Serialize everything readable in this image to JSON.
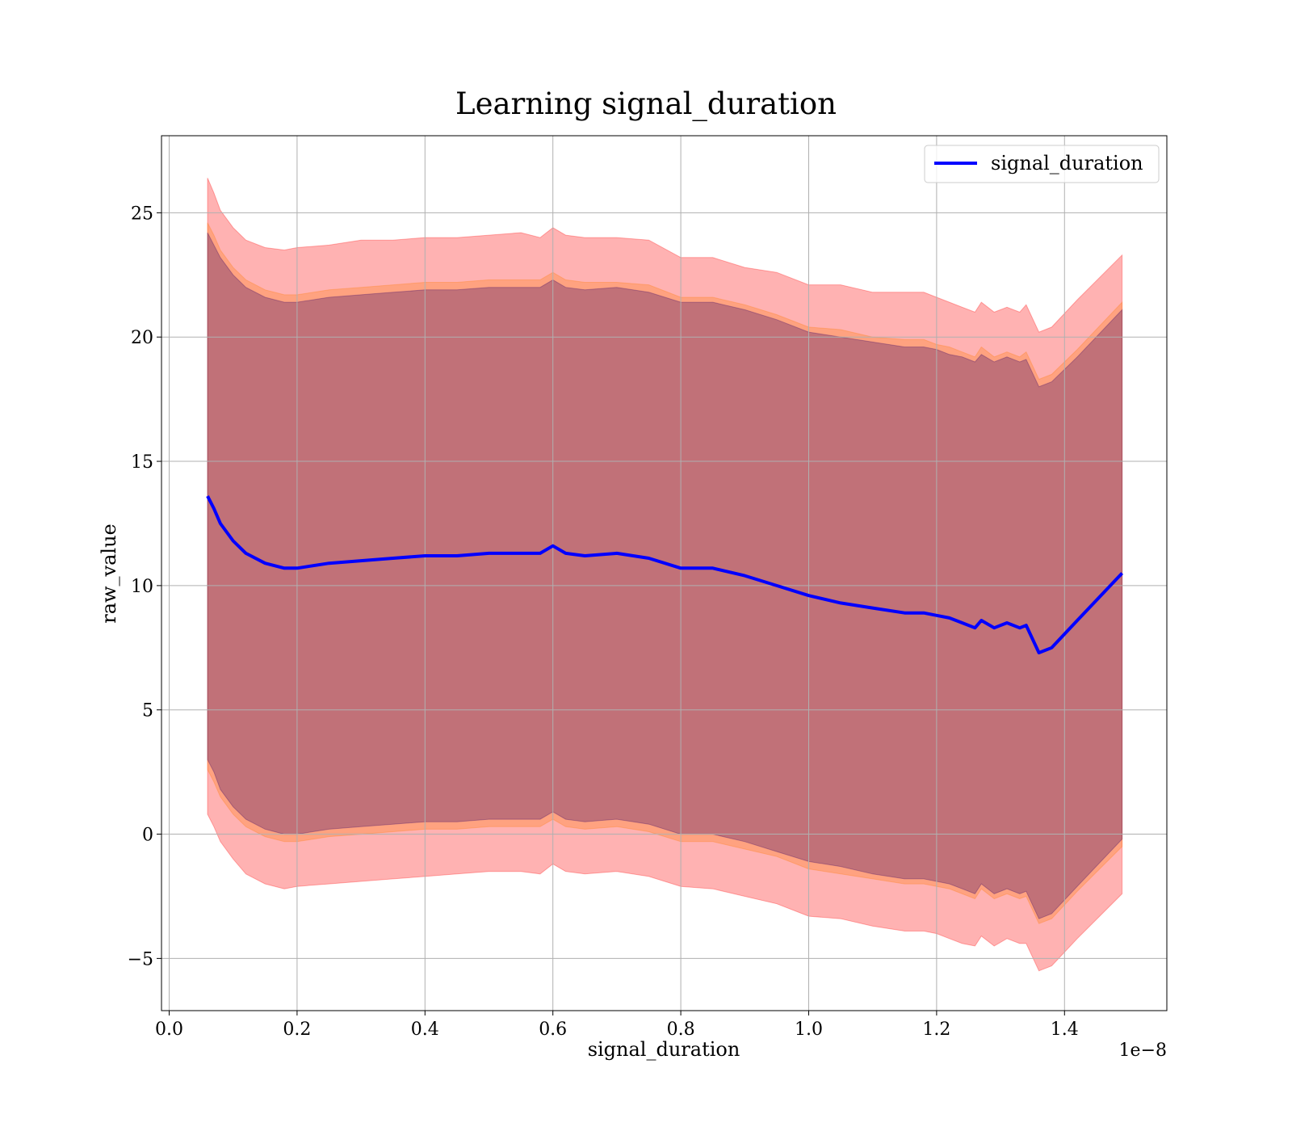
{
  "chart_data": {
    "type": "area",
    "title": "Learning signal_duration",
    "xlabel": "signal_duration",
    "ylabel": "raw_value",
    "x_offset_label": "1e−8",
    "xlim": [
      -0.012,
      1.56
    ],
    "ylim": [
      -7.1,
      28.1
    ],
    "xticks": [
      0.0,
      0.2,
      0.4,
      0.6,
      0.8,
      1.0,
      1.2,
      1.4
    ],
    "xtick_labels": [
      "0.0",
      "0.2",
      "0.4",
      "0.6",
      "0.8",
      "1.0",
      "1.2",
      "1.4"
    ],
    "yticks": [
      -5,
      0,
      5,
      10,
      15,
      20,
      25
    ],
    "ytick_labels": [
      "−5",
      "0",
      "5",
      "10",
      "15",
      "20",
      "25"
    ],
    "grid": true,
    "legend_position": "top-right",
    "x": [
      0.06,
      0.07,
      0.08,
      0.1,
      0.12,
      0.15,
      0.18,
      0.2,
      0.25,
      0.3,
      0.35,
      0.4,
      0.45,
      0.5,
      0.55,
      0.58,
      0.6,
      0.62,
      0.65,
      0.7,
      0.75,
      0.8,
      0.85,
      0.9,
      0.95,
      1.0,
      1.05,
      1.1,
      1.15,
      1.18,
      1.2,
      1.22,
      1.24,
      1.26,
      1.27,
      1.29,
      1.31,
      1.33,
      1.34,
      1.36,
      1.38,
      1.42,
      1.49
    ],
    "series": [
      {
        "name": "signal_duration",
        "color": "#0000ff",
        "values": [
          13.6,
          13.1,
          12.5,
          11.8,
          11.3,
          10.9,
          10.7,
          10.7,
          10.9,
          11.0,
          11.1,
          11.2,
          11.2,
          11.3,
          11.3,
          11.3,
          11.6,
          11.3,
          11.2,
          11.3,
          11.1,
          10.7,
          10.7,
          10.4,
          10.0,
          9.6,
          9.3,
          9.1,
          8.9,
          8.9,
          8.8,
          8.7,
          8.5,
          8.3,
          8.6,
          8.3,
          8.5,
          8.3,
          8.4,
          7.3,
          7.5,
          8.6,
          10.5
        ]
      }
    ],
    "bands": [
      {
        "color": "#ff0000",
        "opacity": 0.3,
        "upper": [
          26.4,
          25.8,
          25.1,
          24.4,
          23.9,
          23.6,
          23.5,
          23.6,
          23.7,
          23.9,
          23.9,
          24.0,
          24.0,
          24.1,
          24.2,
          24.0,
          24.4,
          24.1,
          24.0,
          24.0,
          23.9,
          23.2,
          23.2,
          22.8,
          22.6,
          22.1,
          22.1,
          21.8,
          21.8,
          21.8,
          21.6,
          21.4,
          21.2,
          21.0,
          21.4,
          21.0,
          21.2,
          21.0,
          21.3,
          20.2,
          20.4,
          21.5,
          23.3
        ],
        "lower": [
          0.8,
          0.3,
          -0.3,
          -1.0,
          -1.6,
          -2.0,
          -2.2,
          -2.1,
          -2.0,
          -1.9,
          -1.8,
          -1.7,
          -1.6,
          -1.5,
          -1.5,
          -1.6,
          -1.2,
          -1.5,
          -1.6,
          -1.5,
          -1.7,
          -2.1,
          -2.2,
          -2.5,
          -2.8,
          -3.3,
          -3.4,
          -3.7,
          -3.9,
          -3.9,
          -4.0,
          -4.2,
          -4.4,
          -4.5,
          -4.1,
          -4.5,
          -4.2,
          -4.4,
          -4.4,
          -5.5,
          -5.3,
          -4.2,
          -2.4
        ]
      },
      {
        "color": "#ff7f0e",
        "opacity": 0.3,
        "upper": [
          24.6,
          24.1,
          23.5,
          22.8,
          22.3,
          21.9,
          21.7,
          21.7,
          21.9,
          22.0,
          22.1,
          22.2,
          22.2,
          22.3,
          22.3,
          22.3,
          22.6,
          22.3,
          22.2,
          22.2,
          22.1,
          21.6,
          21.6,
          21.3,
          20.9,
          20.4,
          20.3,
          20.0,
          19.9,
          19.9,
          19.7,
          19.6,
          19.4,
          19.2,
          19.6,
          19.2,
          19.4,
          19.2,
          19.4,
          18.3,
          18.5,
          19.5,
          21.4
        ],
        "lower": [
          2.6,
          2.1,
          1.5,
          0.8,
          0.3,
          -0.1,
          -0.3,
          -0.3,
          -0.1,
          0.0,
          0.1,
          0.2,
          0.2,
          0.3,
          0.3,
          0.3,
          0.6,
          0.3,
          0.2,
          0.3,
          0.1,
          -0.3,
          -0.3,
          -0.6,
          -0.9,
          -1.4,
          -1.6,
          -1.8,
          -2.0,
          -2.0,
          -2.1,
          -2.2,
          -2.4,
          -2.6,
          -2.2,
          -2.6,
          -2.4,
          -2.6,
          -2.5,
          -3.6,
          -3.4,
          -2.3,
          -0.5
        ]
      },
      {
        "color": "#330066",
        "opacity": 0.3,
        "upper": [
          24.2,
          23.7,
          23.2,
          22.5,
          22.0,
          21.6,
          21.4,
          21.4,
          21.6,
          21.7,
          21.8,
          21.9,
          21.9,
          22.0,
          22.0,
          22.0,
          22.3,
          22.0,
          21.9,
          22.0,
          21.8,
          21.4,
          21.4,
          21.1,
          20.7,
          20.2,
          20.0,
          19.8,
          19.6,
          19.6,
          19.5,
          19.3,
          19.2,
          19.0,
          19.3,
          19.0,
          19.2,
          19.0,
          19.1,
          18.0,
          18.2,
          19.2,
          21.1
        ],
        "lower": [
          3.0,
          2.5,
          1.8,
          1.1,
          0.6,
          0.2,
          0.0,
          0.0,
          0.2,
          0.3,
          0.4,
          0.5,
          0.5,
          0.6,
          0.6,
          0.6,
          0.9,
          0.6,
          0.5,
          0.6,
          0.4,
          0.0,
          0.0,
          -0.3,
          -0.7,
          -1.1,
          -1.3,
          -1.6,
          -1.8,
          -1.8,
          -1.9,
          -2.0,
          -2.2,
          -2.4,
          -2.0,
          -2.4,
          -2.2,
          -2.4,
          -2.3,
          -3.4,
          -3.2,
          -2.1,
          -0.2
        ]
      }
    ]
  }
}
